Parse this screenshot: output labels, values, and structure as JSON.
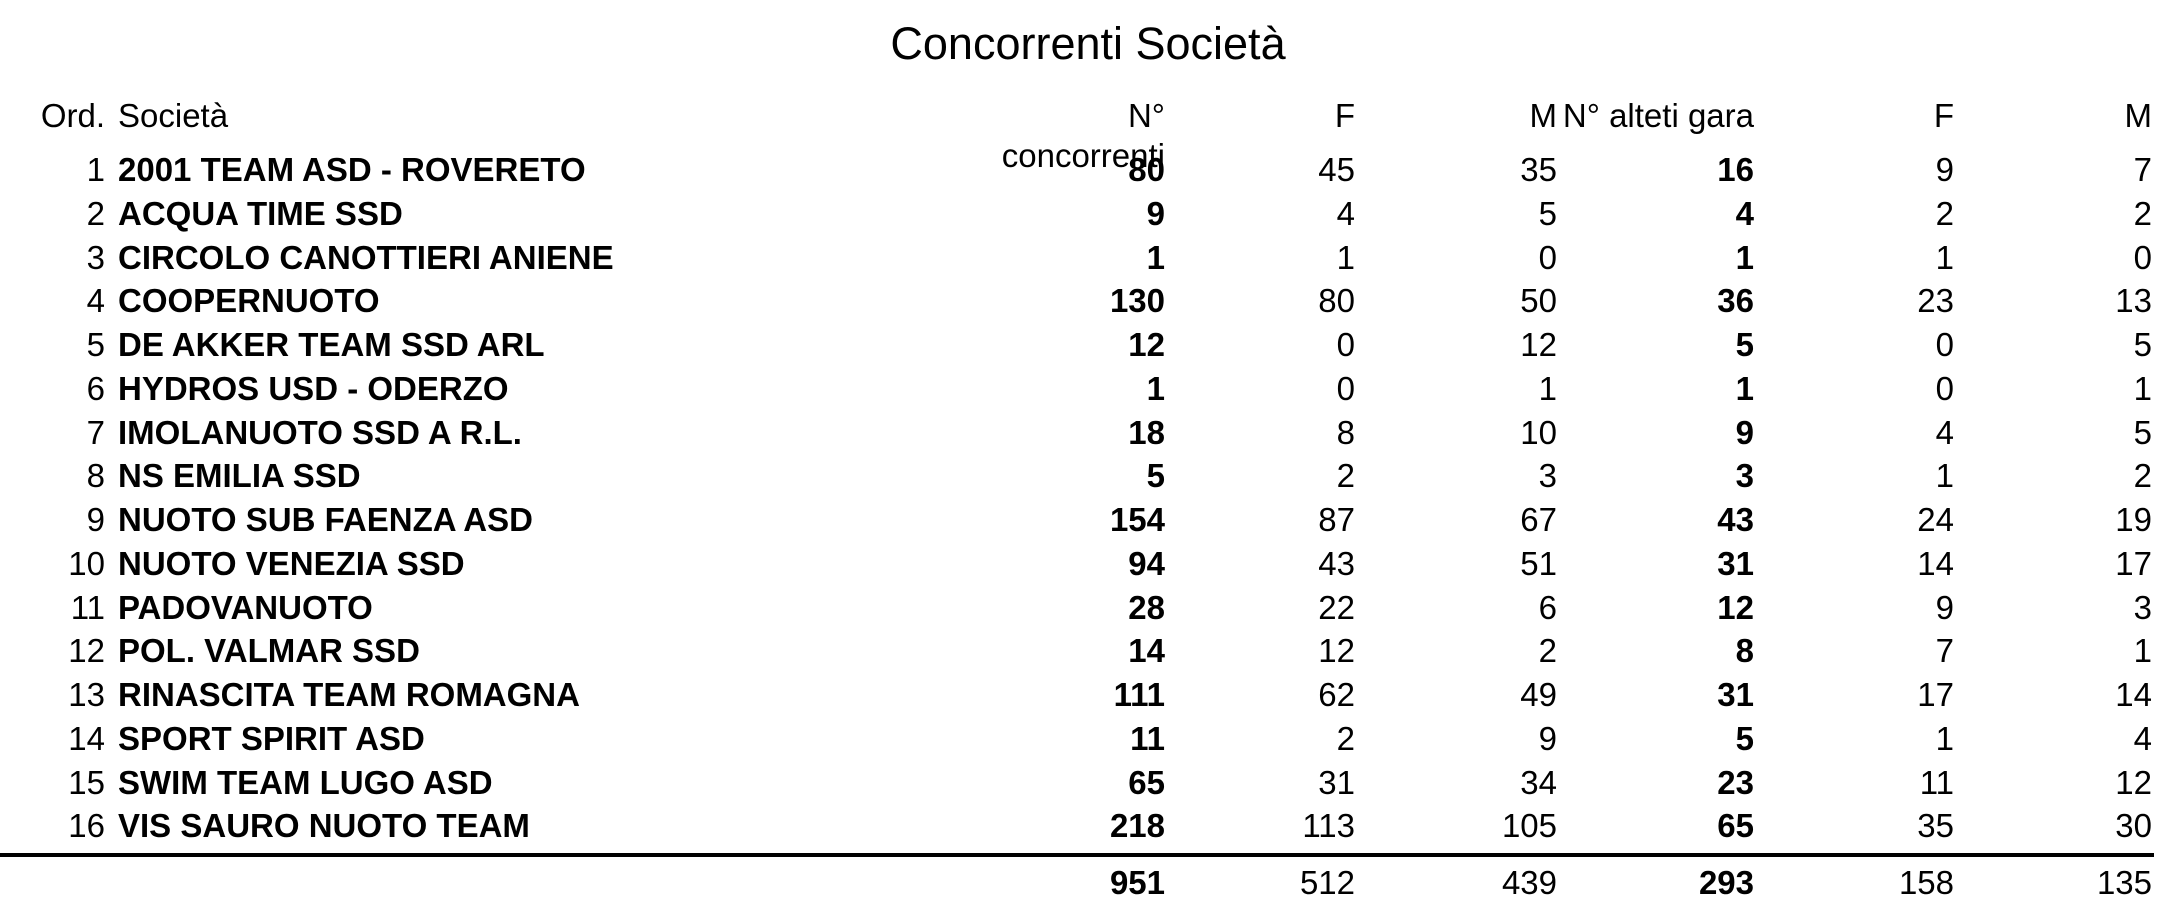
{
  "title": "Concorrenti Società",
  "table": {
    "headers": {
      "ord": "Ord.",
      "societa": "Società",
      "n_concorrenti": "N° concorrenti",
      "f1": "F",
      "m1": "M",
      "n_atleti_gara": "N° alteti gara",
      "f2": "F",
      "m2": "M"
    },
    "rows": [
      {
        "ord": "1",
        "societa": "2001 TEAM ASD - ROVERETO",
        "n_concorrenti": "80",
        "f1": "45",
        "m1": "35",
        "n_atleti_gara": "16",
        "f2": "9",
        "m2": "7"
      },
      {
        "ord": "2",
        "societa": "ACQUA TIME SSD",
        "n_concorrenti": "9",
        "f1": "4",
        "m1": "5",
        "n_atleti_gara": "4",
        "f2": "2",
        "m2": "2"
      },
      {
        "ord": "3",
        "societa": "CIRCOLO CANOTTIERI ANIENE",
        "n_concorrenti": "1",
        "f1": "1",
        "m1": "0",
        "n_atleti_gara": "1",
        "f2": "1",
        "m2": "0"
      },
      {
        "ord": "4",
        "societa": "COOPERNUOTO",
        "n_concorrenti": "130",
        "f1": "80",
        "m1": "50",
        "n_atleti_gara": "36",
        "f2": "23",
        "m2": "13"
      },
      {
        "ord": "5",
        "societa": "DE AKKER TEAM SSD ARL",
        "n_concorrenti": "12",
        "f1": "0",
        "m1": "12",
        "n_atleti_gara": "5",
        "f2": "0",
        "m2": "5"
      },
      {
        "ord": "6",
        "societa": "HYDROS USD - ODERZO",
        "n_concorrenti": "1",
        "f1": "0",
        "m1": "1",
        "n_atleti_gara": "1",
        "f2": "0",
        "m2": "1"
      },
      {
        "ord": "7",
        "societa": "IMOLANUOTO SSD A R.L.",
        "n_concorrenti": "18",
        "f1": "8",
        "m1": "10",
        "n_atleti_gara": "9",
        "f2": "4",
        "m2": "5"
      },
      {
        "ord": "8",
        "societa": "NS EMILIA SSD",
        "n_concorrenti": "5",
        "f1": "2",
        "m1": "3",
        "n_atleti_gara": "3",
        "f2": "1",
        "m2": "2"
      },
      {
        "ord": "9",
        "societa": "NUOTO SUB FAENZA ASD",
        "n_concorrenti": "154",
        "f1": "87",
        "m1": "67",
        "n_atleti_gara": "43",
        "f2": "24",
        "m2": "19"
      },
      {
        "ord": "10",
        "societa": "NUOTO VENEZIA SSD",
        "n_concorrenti": "94",
        "f1": "43",
        "m1": "51",
        "n_atleti_gara": "31",
        "f2": "14",
        "m2": "17"
      },
      {
        "ord": "11",
        "societa": "PADOVANUOTO",
        "n_concorrenti": "28",
        "f1": "22",
        "m1": "6",
        "n_atleti_gara": "12",
        "f2": "9",
        "m2": "3"
      },
      {
        "ord": "12",
        "societa": "POL. VALMAR SSD",
        "n_concorrenti": "14",
        "f1": "12",
        "m1": "2",
        "n_atleti_gara": "8",
        "f2": "7",
        "m2": "1"
      },
      {
        "ord": "13",
        "societa": "RINASCITA TEAM ROMAGNA",
        "n_concorrenti": "111",
        "f1": "62",
        "m1": "49",
        "n_atleti_gara": "31",
        "f2": "17",
        "m2": "14"
      },
      {
        "ord": "14",
        "societa": "SPORT SPIRIT ASD",
        "n_concorrenti": "11",
        "f1": "2",
        "m1": "9",
        "n_atleti_gara": "5",
        "f2": "1",
        "m2": "4"
      },
      {
        "ord": "15",
        "societa": "SWIM TEAM LUGO ASD",
        "n_concorrenti": "65",
        "f1": "31",
        "m1": "34",
        "n_atleti_gara": "23",
        "f2": "11",
        "m2": "12"
      },
      {
        "ord": "16",
        "societa": "VIS SAURO NUOTO TEAM",
        "n_concorrenti": "218",
        "f1": "113",
        "m1": "105",
        "n_atleti_gara": "65",
        "f2": "35",
        "m2": "30"
      }
    ],
    "totals": {
      "n_concorrenti": "951",
      "f1": "512",
      "m1": "439",
      "n_atleti_gara": "293",
      "f2": "158",
      "m2": "135"
    }
  }
}
